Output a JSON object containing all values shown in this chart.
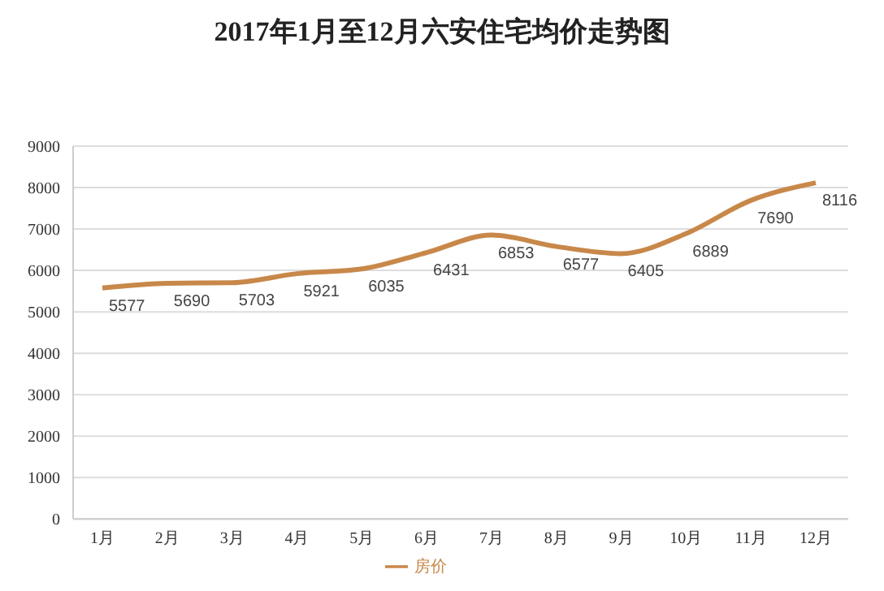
{
  "chart_data": {
    "type": "line",
    "title": "2017年1月至12月六安住宅均价走势图",
    "categories": [
      "1月",
      "2月",
      "3月",
      "4月",
      "5月",
      "6月",
      "7月",
      "8月",
      "9月",
      "10月",
      "11月",
      "12月"
    ],
    "series": [
      {
        "name": "房价",
        "color": "#c8884a",
        "values": [
          5577,
          5690,
          5703,
          5921,
          6035,
          6431,
          6853,
          6577,
          6405,
          6889,
          7690,
          8116
        ]
      }
    ],
    "ylim": [
      0,
      9000
    ],
    "yticks": [
      0,
      1000,
      2000,
      3000,
      4000,
      5000,
      6000,
      7000,
      8000,
      9000
    ],
    "grid": "y",
    "legend": "bottom",
    "data_labels": true,
    "marker": "none",
    "line_style": "solid"
  }
}
